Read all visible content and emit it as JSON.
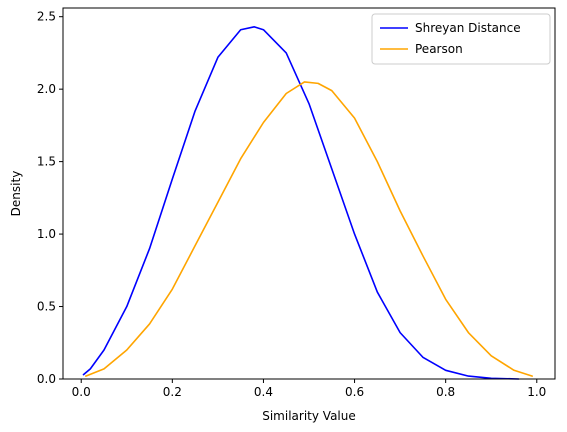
{
  "chart_data": {
    "type": "line",
    "title": "",
    "xlabel": "Similarity Value",
    "ylabel": "Density",
    "xlim": [
      -0.04,
      1.04
    ],
    "ylim": [
      0.0,
      2.56
    ],
    "xticks": [
      0.0,
      0.2,
      0.4,
      0.6,
      0.8,
      1.0
    ],
    "xtick_labels": [
      "0.0",
      "0.2",
      "0.4",
      "0.6",
      "0.8",
      "1.0"
    ],
    "yticks": [
      0.0,
      0.5,
      1.0,
      1.5,
      2.0,
      2.5
    ],
    "ytick_labels": [
      "0.0",
      "0.5",
      "1.0",
      "1.5",
      "2.0",
      "2.5"
    ],
    "grid": false,
    "legend": "top-right",
    "series": [
      {
        "name": "Shreyan Distance",
        "color": "#0000ff",
        "x": [
          0.005,
          0.02,
          0.05,
          0.1,
          0.15,
          0.2,
          0.25,
          0.3,
          0.35,
          0.38,
          0.4,
          0.45,
          0.5,
          0.55,
          0.6,
          0.65,
          0.7,
          0.75,
          0.8,
          0.85,
          0.9,
          0.96
        ],
        "y": [
          0.03,
          0.07,
          0.2,
          0.5,
          0.9,
          1.38,
          1.85,
          2.22,
          2.41,
          2.43,
          2.41,
          2.25,
          1.9,
          1.45,
          1.0,
          0.6,
          0.32,
          0.15,
          0.06,
          0.02,
          0.005,
          0.0
        ]
      },
      {
        "name": "Pearson",
        "color": "#ffa500",
        "x": [
          0.01,
          0.05,
          0.1,
          0.15,
          0.2,
          0.25,
          0.3,
          0.35,
          0.4,
          0.45,
          0.49,
          0.52,
          0.55,
          0.6,
          0.65,
          0.7,
          0.75,
          0.8,
          0.85,
          0.9,
          0.95,
          0.99
        ],
        "y": [
          0.02,
          0.07,
          0.2,
          0.38,
          0.62,
          0.92,
          1.22,
          1.52,
          1.77,
          1.97,
          2.05,
          2.04,
          1.99,
          1.8,
          1.5,
          1.16,
          0.85,
          0.55,
          0.32,
          0.16,
          0.06,
          0.02
        ]
      }
    ]
  }
}
